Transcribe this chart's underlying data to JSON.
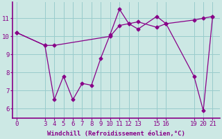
{
  "xlabel": "Windchill (Refroidissement éolien,°C)",
  "background_color": "#cce8e4",
  "line_color": "#880088",
  "grid_color": "#99cccc",
  "axis_color": "#880088",
  "series1_x": [
    0,
    3,
    4,
    5,
    6,
    7,
    8,
    9,
    10,
    11,
    12,
    13,
    15,
    16,
    19,
    20,
    21
  ],
  "series1_y": [
    10.2,
    9.5,
    6.5,
    7.8,
    6.5,
    7.4,
    7.3,
    8.8,
    10.1,
    11.5,
    10.7,
    10.4,
    11.1,
    10.7,
    7.8,
    5.9,
    11.1
  ],
  "series2_x": [
    0,
    3,
    4,
    10,
    11,
    12,
    13,
    15,
    16,
    19,
    20,
    21
  ],
  "series2_y": [
    10.2,
    9.5,
    9.5,
    10.0,
    10.6,
    10.7,
    10.8,
    10.5,
    10.7,
    10.9,
    11.0,
    11.1
  ],
  "ylim": [
    5.5,
    11.9
  ],
  "yticks": [
    6,
    7,
    8,
    9,
    10,
    11
  ],
  "xticks": [
    0,
    3,
    4,
    5,
    6,
    7,
    8,
    9,
    10,
    11,
    12,
    13,
    15,
    16,
    19,
    20,
    21
  ],
  "xlim": [
    -0.5,
    21.8
  ],
  "tick_fontsize": 6.5,
  "xlabel_fontsize": 6.5
}
